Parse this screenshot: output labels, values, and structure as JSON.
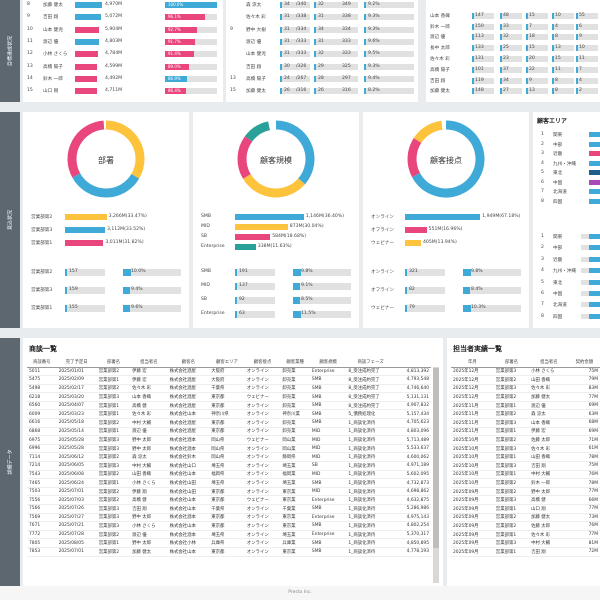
{
  "sections": [
    "目標達成状況",
    "見込状況",
    "詳細データ"
  ],
  "top_left": {
    "rows": [
      {
        "no": "8",
        "name": "加藤 健太",
        "amt": "4,970M",
        "pct": "100.0%",
        "pw": 52,
        "bw": 0.96,
        "pc": "#3fa9d8",
        "nc": "#3fa9d8"
      },
      {
        "no": "9",
        "name": "吉田 翔",
        "amt": "5,072M",
        "pct": "96.1%",
        "pw": 40,
        "bw": 0.92,
        "pc": "#e8467c",
        "nc": "#3fa9d8"
      },
      {
        "no": "10",
        "name": "山本 健児",
        "amt": "5,904M",
        "pct": "92.7%",
        "pw": 32,
        "bw": 0.86,
        "pc": "#e8467c",
        "nc": "#e8467c"
      },
      {
        "no": "11",
        "name": "渡辺 優",
        "amt": "4,803M",
        "pct": "91.7%",
        "pw": 30,
        "bw": 0.84,
        "pc": "#e8467c",
        "nc": "#3fa9d8"
      },
      {
        "no": "12",
        "name": "小林 さくら",
        "amt": "4,784M",
        "pct": "91.4%",
        "pw": 29,
        "bw": 0.83,
        "pc": "#e8467c",
        "nc": "#e8467c"
      },
      {
        "no": "13",
        "name": "高橋 陽子",
        "amt": "4,599M",
        "pct": "89.0%",
        "pw": 24,
        "bw": 0.8,
        "pc": "#e8467c",
        "nc": "#e8467c"
      },
      {
        "no": "14",
        "name": "鈴木 一郎",
        "amt": "4,492M",
        "pct": "86.9%",
        "pw": 22,
        "bw": 0.78,
        "pc": "#3fa9d8",
        "nc": "#e8467c"
      },
      {
        "no": "15",
        "name": "山口 剛",
        "amt": "4,711M",
        "pct": "86.4%",
        "pw": 21,
        "bw": 0.79,
        "pc": "#e8467c",
        "nc": "#e8467c"
      }
    ]
  },
  "top_mid": {
    "rows": [
      {
        "g": "",
        "name": "森 涼太",
        "a": "34",
        "b": "/340",
        "c": "32",
        "d": "349",
        "e": "9.2%"
      },
      {
        "g": "",
        "name": "佐々木 彩",
        "a": "31",
        "b": "/338",
        "c": "31",
        "d": "338",
        "e": "9.3%"
      },
      {
        "g": "9",
        "name": "野中 大樹",
        "a": "31",
        "b": "/334",
        "c": "34",
        "d": "334",
        "e": "9.3%"
      },
      {
        "g": "",
        "name": "渡辺 優",
        "a": "31",
        "b": "/333",
        "c": "31",
        "d": "333",
        "e": "9.6%"
      },
      {
        "g": "",
        "name": "山本 健児",
        "a": "31",
        "b": "/333",
        "c": "32",
        "d": "333",
        "e": "9.5%"
      },
      {
        "g": "",
        "name": "吉田 翔",
        "a": "30",
        "b": "/326",
        "c": "29",
        "d": "325",
        "e": "9.3%"
      },
      {
        "g": "13",
        "name": "高橋 陽子",
        "a": "24",
        "b": "/267",
        "c": "28",
        "d": "297",
        "e": "9.4%"
      },
      {
        "g": "15",
        "name": "加藤 健太",
        "a": "26",
        "b": "/316",
        "c": "26",
        "d": "316",
        "e": "8.2%"
      }
    ]
  },
  "top_right": {
    "rows": [
      {
        "name": "",
        "a": "",
        "b": "",
        "c": "",
        "d": "",
        "e": ""
      },
      {
        "name": "山本 香織",
        "a": "147",
        "b": "48",
        "c": "15",
        "d": "10",
        "e": "55"
      },
      {
        "name": "鈴木 一郎",
        "a": "150",
        "b": "33",
        "c": "7",
        "d": "4",
        "e": "6"
      },
      {
        "name": "渡辺 優",
        "a": "113",
        "c": "18",
        "b": "32",
        "d": "8",
        "e": "9"
      },
      {
        "name": "長中 太郎",
        "a": "133",
        "b": "25",
        "c": "15",
        "d": "13",
        "e": "10"
      },
      {
        "name": "佐々木 彩",
        "a": "131",
        "b": "23",
        "c": "20",
        "d": "15",
        "e": "11"
      },
      {
        "name": "高橋 陽子",
        "a": "101",
        "b": "37",
        "c": "22",
        "d": "11",
        "e": "7"
      },
      {
        "name": "吉田 翔",
        "a": "119",
        "b": "34",
        "c": "9",
        "d": "8",
        "e": "4"
      },
      {
        "name": "加藤 健太",
        "a": "148",
        "b": "27",
        "c": "13",
        "d": "8",
        "e": "2"
      }
    ]
  },
  "donuts": [
    {
      "label": "部署",
      "items": [
        {
          "name": "営業部第2",
          "amt": "3,266M(33.47%)",
          "w": 0.52,
          "cnt": "157",
          "pct": "10.0%",
          "pw": 0.1
        },
        {
          "name": "営業部第3",
          "amt": "3,112M(33.52%)",
          "w": 0.5,
          "cnt": "159",
          "pct": "9.4%",
          "pw": 0.09
        },
        {
          "name": "営業部第1",
          "amt": "3,011M(31.82%)",
          "w": 0.48,
          "cnt": "155",
          "pct": "9.6%",
          "pw": 0.09
        }
      ]
    },
    {
      "label": "顧客規模",
      "items": [
        {
          "name": "SMB",
          "amt": "1,146M(36.40%)",
          "w": 0.86,
          "cnt": "191",
          "pct": "9.8%",
          "pw": 0.1
        },
        {
          "name": "MID",
          "amt": "873M(30.04%)",
          "w": 0.66,
          "cnt": "137",
          "pct": "9.1%",
          "pw": 0.09
        },
        {
          "name": "SB",
          "amt": "584M(18.68%)",
          "w": 0.44,
          "cnt": "92",
          "pct": "8.5%",
          "pw": 0.08
        },
        {
          "name": "Enterprise",
          "amt": "338M(11.63%)",
          "w": 0.26,
          "cnt": "63",
          "pct": "11.5%",
          "pw": 0.11
        }
      ]
    },
    {
      "label": "顧客接点",
      "items": [
        {
          "name": "オンライン",
          "amt": "1,949M(67.18%)",
          "w": 0.94,
          "cnt": "321",
          "pct": "9.8%",
          "pw": 0.1
        },
        {
          "name": "オフライン",
          "amt": "551M(16.96%)",
          "w": 0.27,
          "cnt": "82",
          "pct": "8.4%",
          "pw": 0.08
        },
        {
          "name": "ウェビナー",
          "amt": "405M(13.94%)",
          "w": 0.2,
          "cnt": "79",
          "pct": "10.3%",
          "pw": 0.1
        }
      ]
    }
  ],
  "area": {
    "title": "顧客エリア",
    "items1": [
      {
        "no": "1",
        "name": "関東",
        "c": "#3fa9d8"
      },
      {
        "no": "2",
        "name": "中部",
        "c": "#3fa9d8"
      },
      {
        "no": "3",
        "name": "近畿",
        "c": "#e8467c"
      },
      {
        "no": "4",
        "name": "九州・沖縄",
        "c": "#3fa9d8"
      },
      {
        "no": "5",
        "name": "東北",
        "c": "#1f5f8b"
      },
      {
        "no": "6",
        "name": "中国",
        "c": "#a94bb7"
      },
      {
        "no": "7",
        "name": "北海道",
        "c": "#3fa9d8"
      },
      {
        "no": "8",
        "name": "四国",
        "c": "#3fa9d8"
      }
    ],
    "items2": [
      {
        "no": "1",
        "name": "関東"
      },
      {
        "no": "2",
        "name": "中部"
      },
      {
        "no": "3",
        "name": "近畿"
      },
      {
        "no": "4",
        "name": "九州・沖縄"
      },
      {
        "no": "5",
        "name": "東北"
      },
      {
        "no": "6",
        "name": "中国"
      },
      {
        "no": "7",
        "name": "北海道"
      },
      {
        "no": "8",
        "name": "四国"
      }
    ]
  },
  "deals": {
    "title": "商談一覧",
    "columns": [
      "商談番号",
      "完了予定日",
      "部署名",
      "担当者名",
      "顧客名",
      "顧客エリア",
      "顧客接点",
      "顧客業種",
      "顧客規模",
      "商談フェーズ",
      ""
    ],
    "rows": [
      [
        "5011",
        "2025/01/01",
        "営業部第2",
        "伊藤 宏",
        "株式会社酒屋",
        "大阪府",
        "オンライン",
        "卸売業",
        "Enterprise",
        "8_受注成約完了",
        "4,813,392"
      ],
      [
        "5475",
        "2025/02/09",
        "営業部第1",
        "伊藤 宏",
        "株式会社酒屋",
        "大阪府",
        "オンライン",
        "卸売業",
        "SMB",
        "8_受注成約完了",
        "4,793,548"
      ],
      [
        "5498",
        "2025/02/17",
        "営業部第2",
        "佐々木 彩",
        "株式会社酒屋",
        "千葉県",
        "オンライン",
        "卸売業",
        "SMB",
        "8_受注成約完了",
        "4,746,640"
      ],
      [
        "6218",
        "2025/03/20",
        "営業部第3",
        "山本 香織",
        "株式会社酒屋",
        "東京都",
        "ウェビナー",
        "卸売業",
        "SMB",
        "8_受注成約完了",
        "5,131,131"
      ],
      [
        "6560",
        "2025/04/07",
        "営業部第1",
        "高橋 健",
        "株式会社酒屋",
        "東京都",
        "オンライン",
        "卸売業",
        "SMB",
        "8_受注成約完了",
        "4,907,832"
      ],
      [
        "6009",
        "2025/03/23",
        "営業部第1",
        "佐々木 彩",
        "株式会社山本",
        "神奈川県",
        "オンライン",
        "神奈川業",
        "SMB",
        "5_債務処理化",
        "5,157,434"
      ],
      [
        "6616",
        "2025/05/18",
        "営業部第2",
        "中村 大輔",
        "株式会社酒屋",
        "東京都",
        "オンライン",
        "卸売業",
        "SMB",
        "1_商談化済待",
        "4,705,623"
      ],
      [
        "6868",
        "2025/05/14",
        "営業部第1",
        "渡辺 優",
        "株式会社酒屋",
        "東京都",
        "オンライン",
        "卸売業",
        "MID",
        "1_商談化済待",
        "4,803,096"
      ],
      [
        "6975",
        "2025/05/28",
        "営業部第3",
        "野中 太郎",
        "株式会社酒本",
        "岡山県",
        "ウェビナー",
        "岡山業",
        "MID",
        "1_商談化済待",
        "5,713,489"
      ],
      [
        "6996",
        "2025/05/28",
        "営業部第3",
        "野中 太郎",
        "株式会社酒本",
        "岡山県",
        "オンライン",
        "岡山業",
        "MID",
        "1_商談化済待",
        "5,533,637"
      ],
      [
        "7114",
        "2025/06/12",
        "営業部第2",
        "森 涼太",
        "株式会社鈴木",
        "岡山県",
        "オンライン",
        "静岡県",
        "MID",
        "1_商談化済待",
        "4,600,062"
      ],
      [
        "7214",
        "2025/06/05",
        "営業部第3",
        "中村 大輔",
        "株式会社山口",
        "埼玉県",
        "オンライン",
        "埼玉業",
        "SB",
        "1_商談化済待",
        "4,971,189"
      ],
      [
        "7543",
        "2025/06/08",
        "営業部第2",
        "山田 香織",
        "株式会社山本",
        "福岡県",
        "オンライン",
        "福岡業",
        "MID",
        "1_商談化済待",
        "5,602,095"
      ],
      [
        "7465",
        "2025/06/24",
        "営業部第1",
        "小林 さくら",
        "株式会社山田",
        "埼玉県",
        "オンライン",
        "埼玉業",
        "SMB",
        "1_商談化済待",
        "4,732,873"
      ],
      [
        "7503",
        "2025/07/01",
        "営業部第2",
        "伊藤 翔",
        "株式会社山田",
        "東京都",
        "オンライン",
        "東京業",
        "MID",
        "1_商談化済待",
        "4,698,862"
      ],
      [
        "7556",
        "2025/07/03",
        "営業部第2",
        "高橋 健",
        "株式会社山本",
        "東京都",
        "ウェビナー",
        "東京業",
        "Enterprise",
        "1_商談化済待",
        "4,632,875"
      ],
      [
        "7566",
        "2025/07/26",
        "営業部第3",
        "吉田 翔",
        "株式会社山本",
        "千葉県",
        "オンライン",
        "千葉業",
        "SMB",
        "1_商談化済待",
        "5,286,986"
      ],
      [
        "7569",
        "2025/07/27",
        "営業部第3",
        "野中 太郎",
        "株式会社酒本",
        "東京都",
        "オンライン",
        "東京業",
        "Enterprise",
        "1_商談化済待",
        "4,975,143"
      ],
      [
        "7671",
        "2025/07/21",
        "営業部第3",
        "小林 さくら",
        "株式会社山本",
        "東京都",
        "オンライン",
        "東京業",
        "SMB",
        "1_商談化済待",
        "4,802,254"
      ],
      [
        "7772",
        "2025/07/28",
        "営業部第2",
        "渡辺 優",
        "株式会社酒本",
        "埼玉県",
        "オンライン",
        "埼玉業",
        "Enterprise",
        "1_商談化済待",
        "5,370,317"
      ],
      [
        "7805",
        "2025/08/05",
        "営業部第1",
        "野中 太郎",
        "株式会社小林",
        "兵庫県",
        "オンライン",
        "兵庫業",
        "SMB",
        "1_商談化済待",
        "4,850,895"
      ],
      [
        "7853",
        "2025/07/01",
        "営業部第2",
        "加藤 健太",
        "株式会社山本",
        "東京都",
        "オンライン",
        "東京業",
        "SMB",
        "1_商談化済待",
        "4,778,193"
      ]
    ]
  },
  "reps": {
    "title": "担当者実績一覧",
    "columns": [
      "年月",
      "部署名",
      "担当者名",
      "契約金額"
    ],
    "rows": [
      [
        "2025年12月",
        "営業部第3",
        "小林 さくら",
        "75M"
      ],
      [
        "2025年12月",
        "営業部第2",
        "山田 香織",
        "79M"
      ],
      [
        "2025年12月",
        "営業部第3",
        "佐々木 彩",
        "83M"
      ],
      [
        "2025年12月",
        "営業部第2",
        "加藤 健太",
        "77M"
      ],
      [
        "2025年11月",
        "営業部第1",
        "渡辺 優",
        "69M"
      ],
      [
        "2025年11月",
        "営業部第2",
        "森 涼太",
        "63M"
      ],
      [
        "2025年11月",
        "営業部第3",
        "山本 香織",
        "68M"
      ],
      [
        "2025年11月",
        "営業部第1",
        "伊藤 宏",
        "69M"
      ],
      [
        "2025年10月",
        "営業部第2",
        "佐藤 太郎",
        "71M"
      ],
      [
        "2025年10月",
        "営業部第3",
        "佐々木 彩",
        "61M"
      ],
      [
        "2025年10月",
        "営業部第1",
        "山田 香織",
        "78M"
      ],
      [
        "2025年10月",
        "営業部第3",
        "吉田 翔",
        "75M"
      ],
      [
        "2025年10月",
        "営業部第1",
        "中村 大輔",
        "76M"
      ],
      [
        "2025年10月",
        "営業部第2",
        "鈴木 一郎",
        "78M"
      ],
      [
        "2025年09月",
        "営業部第2",
        "野中 太郎",
        "77M"
      ],
      [
        "2025年09月",
        "営業部第3",
        "高橋 健",
        "66M"
      ],
      [
        "2025年09月",
        "営業部第1",
        "山口 翔",
        "77M"
      ],
      [
        "2025年09月",
        "営業部第2",
        "加藤 健太",
        "73M"
      ],
      [
        "2025年09月",
        "営業部第2",
        "佐藤 太郎",
        "76M"
      ],
      [
        "2025年09月",
        "営業部第1",
        "佐々木 彩",
        "77M"
      ],
      [
        "2025年09月",
        "営業部第3",
        "中村 大輔",
        "81M"
      ],
      [
        "2025年09月",
        "営業部第1",
        "吉田 翔",
        "72M"
      ]
    ]
  },
  "footer": "Presto Inc."
}
